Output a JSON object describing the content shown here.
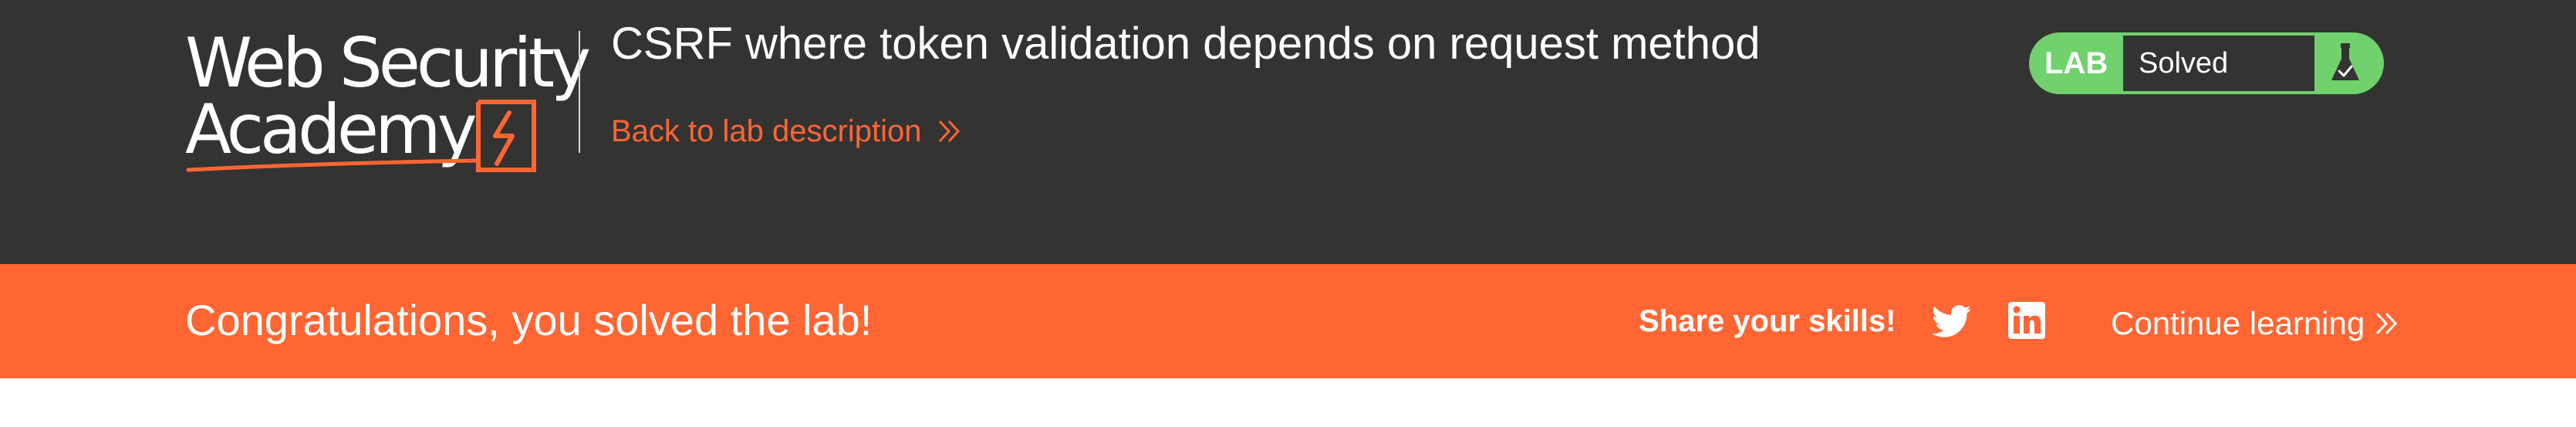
{
  "header": {
    "logo": {
      "line1": "Web Security",
      "line2": "Academy"
    },
    "lab_title": "CSRF where token validation depends on request method",
    "back_link": "Back to lab description",
    "lab_status": {
      "label": "LAB",
      "status": "Solved",
      "icon": "flask-check-icon"
    }
  },
  "banner": {
    "message": "Congratulations, you solved the lab!",
    "share_label": "Share your skills!",
    "share_icons": [
      "twitter-icon",
      "linkedin-icon"
    ],
    "continue_link": "Continue learning"
  },
  "colors": {
    "header_bg": "#333332",
    "accent": "#ff6633",
    "solved_green": "#70d16d",
    "text_light": "#ffffff"
  }
}
